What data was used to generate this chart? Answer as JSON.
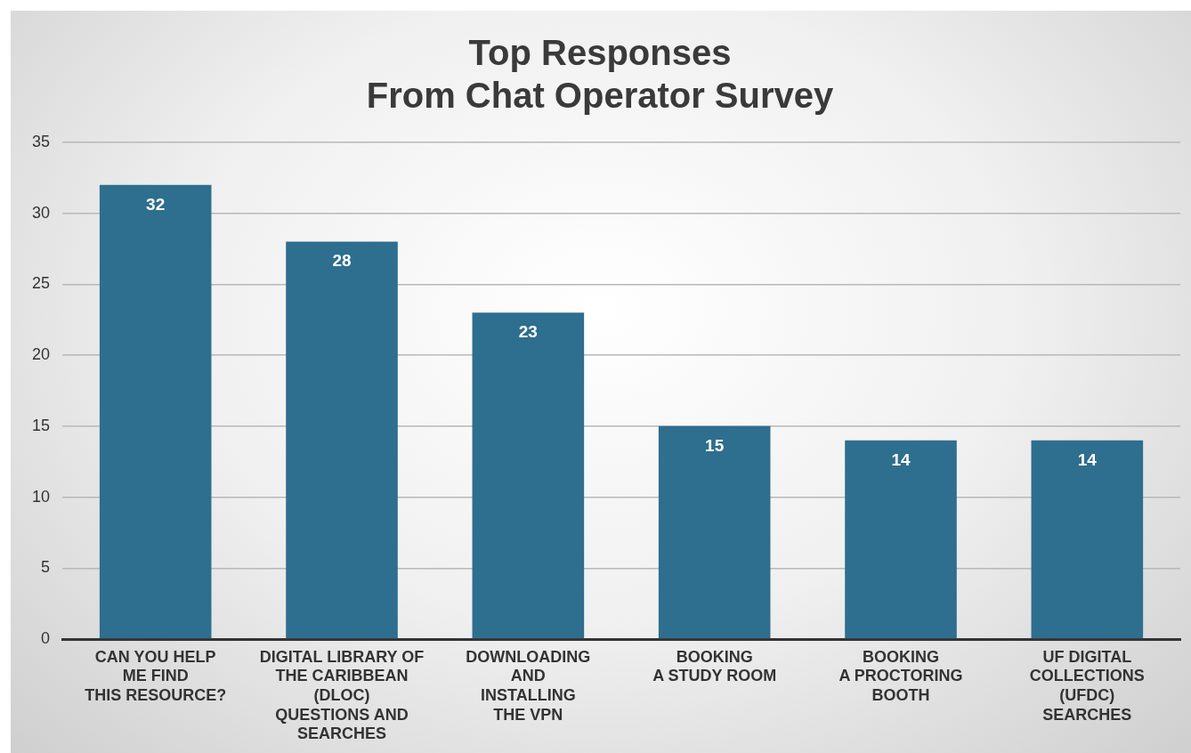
{
  "chart_data": {
    "type": "bar",
    "title": "Top Responses\nFrom Chat Operator Survey",
    "categories": [
      "CAN YOU HELP\nME FIND\nTHIS RESOURCE?",
      "DIGITAL LIBRARY OF\nTHE CARIBBEAN\n(DLOC)\nQUESTIONS AND\nSEARCHES",
      "DOWNLOADING\nAND\nINSTALLING\nTHE VPN",
      "BOOKING\nA STUDY ROOM",
      "BOOKING\nA PROCTORING\nBOOTH",
      "UF DIGITAL\nCOLLECTIONS\n(UFDC)\nSEARCHES"
    ],
    "values": [
      32,
      28,
      23,
      15,
      14,
      14
    ],
    "color": "#2e6e8e",
    "ylim": [
      0,
      35
    ],
    "yticks": [
      0,
      5,
      10,
      15,
      20,
      25,
      30,
      35
    ],
    "grid": "y",
    "data_labels": true
  }
}
